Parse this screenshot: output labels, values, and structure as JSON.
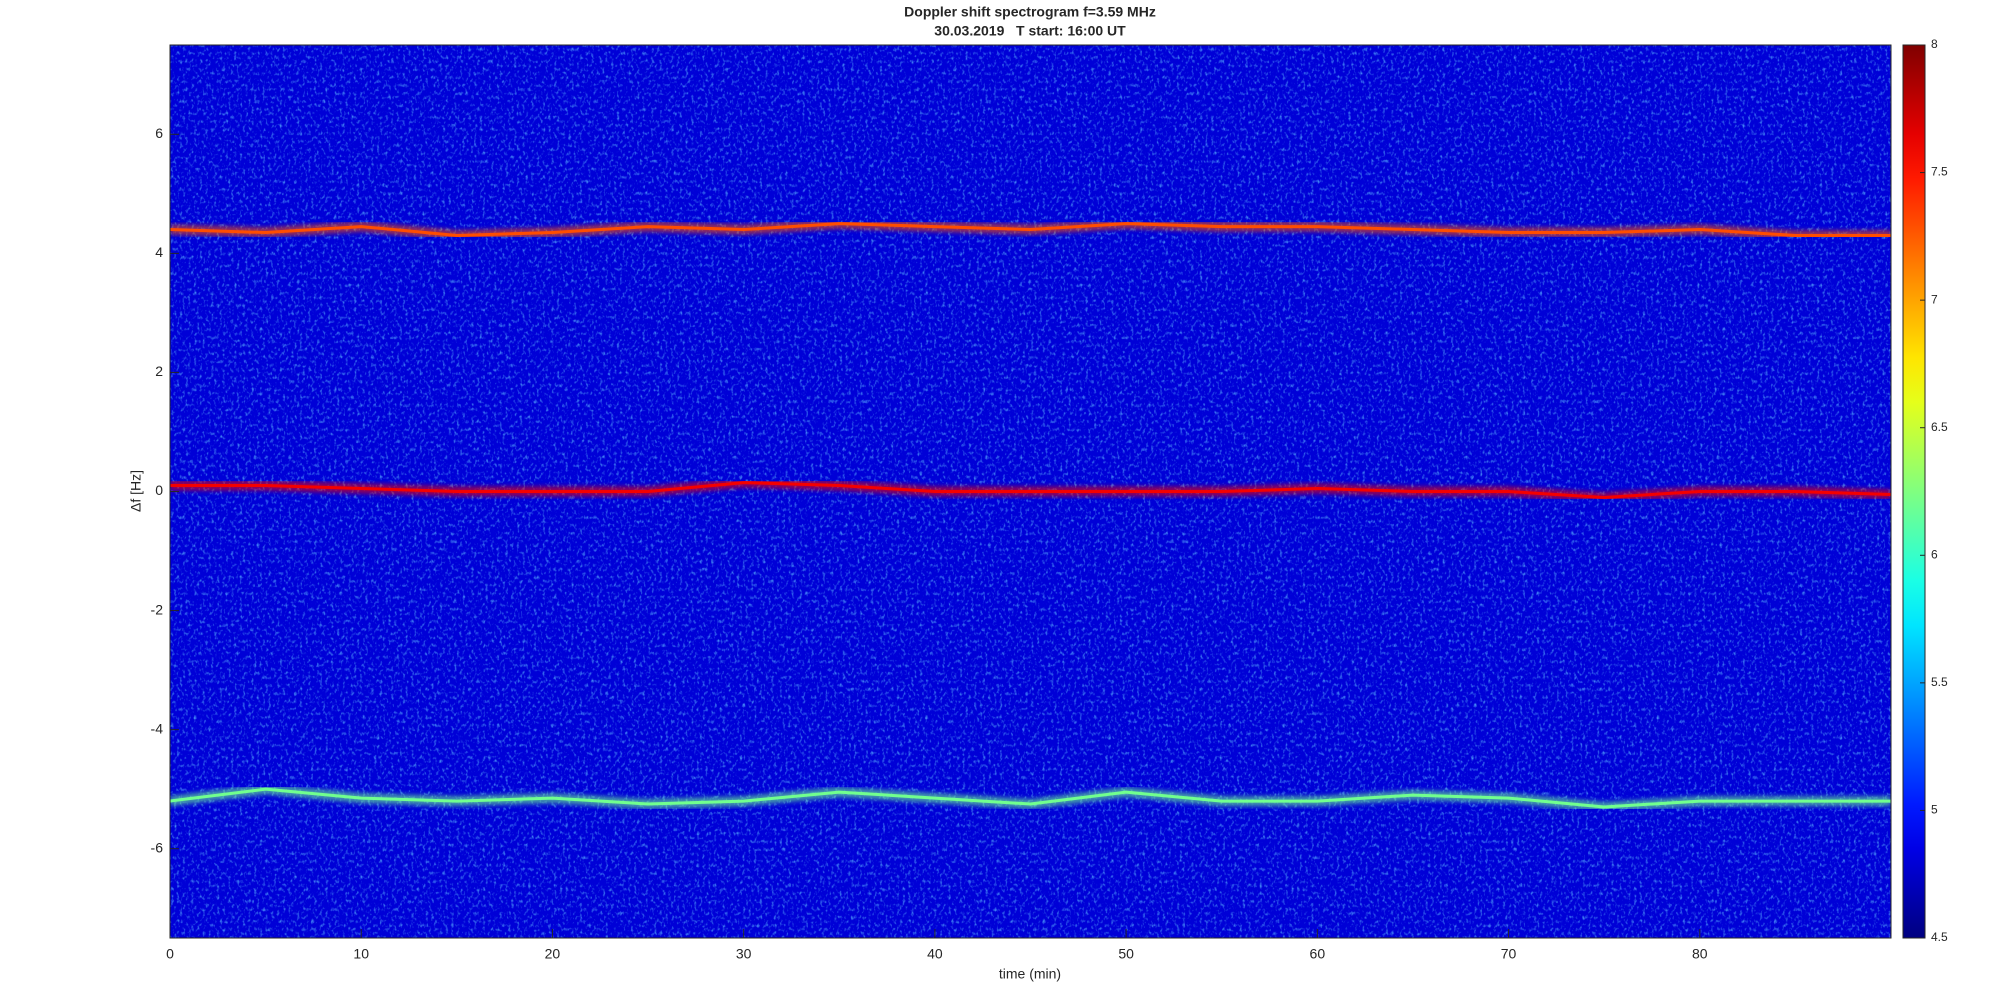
{
  "chart_data": {
    "type": "spectrogram",
    "title": "Doppler shift spectrogram f=3.59 MHz",
    "subtitle": "30.03.2019   T start: 16:00 UT",
    "xlabel": "time (min)",
    "ylabel": "Δf [Hz]",
    "xlim": [
      0,
      90
    ],
    "ylim": [
      -7.5,
      7.5
    ],
    "xticks": [
      0,
      10,
      20,
      30,
      40,
      50,
      60,
      70,
      80
    ],
    "yticks": [
      -6,
      -4,
      -2,
      0,
      2,
      4,
      6
    ],
    "colormap": "jet",
    "clim": [
      4.5,
      8
    ],
    "cticks": [
      4.5,
      5,
      5.5,
      6,
      6.5,
      7,
      7.5,
      8
    ],
    "background": 4.8,
    "series": [
      {
        "x": [
          0,
          5,
          10,
          15,
          20,
          25,
          30,
          35,
          40,
          45,
          50,
          55,
          60,
          65,
          70,
          75,
          80,
          85,
          90
        ],
        "values": [
          4.4,
          4.35,
          4.45,
          4.3,
          4.35,
          4.45,
          4.4,
          4.5,
          4.45,
          4.4,
          4.5,
          4.45,
          4.45,
          4.4,
          4.35,
          4.35,
          4.4,
          4.3,
          4.3
        ],
        "intensity": 7.3
      },
      {
        "x": [
          0,
          5,
          10,
          15,
          20,
          25,
          30,
          35,
          40,
          45,
          50,
          55,
          60,
          65,
          70,
          75,
          80,
          85,
          90
        ],
        "values": [
          0.1,
          0.1,
          0.05,
          0,
          0,
          0,
          0.15,
          0.1,
          0,
          0,
          0,
          0,
          0.05,
          0,
          0,
          -0.1,
          0,
          0,
          -0.05
        ],
        "intensity": 7.6
      },
      {
        "x": [
          0,
          5,
          10,
          15,
          20,
          25,
          30,
          35,
          40,
          45,
          50,
          55,
          60,
          65,
          70,
          75,
          80,
          85,
          90
        ],
        "values": [
          -5.2,
          -5,
          -5.15,
          -5.2,
          -5.15,
          -5.25,
          -5.2,
          -5.05,
          -5.15,
          -5.25,
          -5.05,
          -5.2,
          -5.2,
          -5.1,
          -5.15,
          -5.3,
          -5.2,
          -5.2,
          -5.2
        ],
        "intensity": 6.2
      }
    ]
  }
}
